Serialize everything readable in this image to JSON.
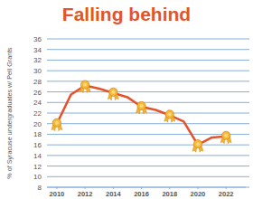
{
  "chart_data": {
    "type": "line",
    "title": "Falling behind",
    "y_label": "% of Syracuse undergraduates w/ Pell Grants",
    "x": [
      2010,
      2011,
      2012,
      2013,
      2014,
      2015,
      2016,
      2017,
      2018,
      2019,
      2020,
      2021,
      2022
    ],
    "values": [
      20,
      25.5,
      27.2,
      26.6,
      25.8,
      25,
      23.2,
      22.6,
      21.6,
      20.4,
      16,
      17.4,
      17.6
    ],
    "color": "#e5532d",
    "marker": "ribbon",
    "xlim": [
      2009.3,
      2023.4
    ],
    "xticks": [
      2010,
      2012,
      2014,
      2016,
      2018,
      2020,
      2022
    ],
    "ylim": [
      8,
      36
    ],
    "yticks": [
      8,
      10,
      12,
      14,
      16,
      18,
      20,
      22,
      24,
      26,
      28,
      30,
      32,
      34,
      36
    ],
    "grid": true
  }
}
